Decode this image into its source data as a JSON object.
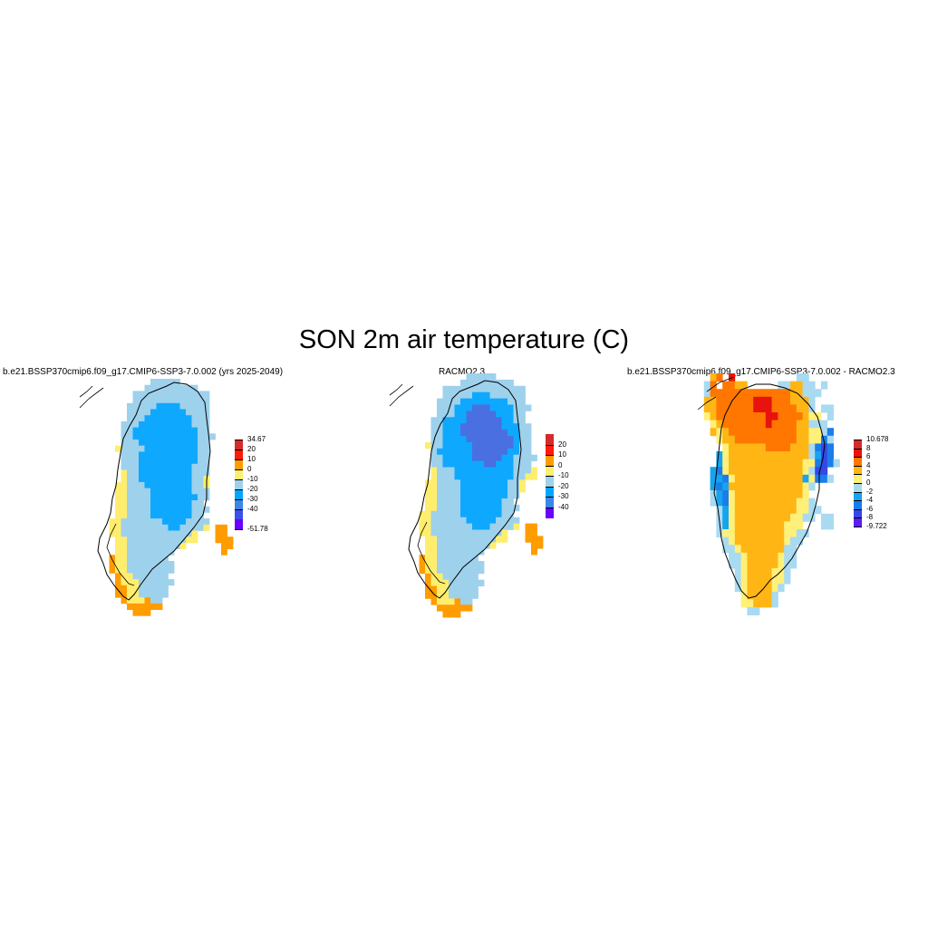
{
  "title": "SON 2m air temperature (C)",
  "panels": [
    {
      "title": "b.e21.BSSP370cmip6.f09_g17.CMIP6-SSP3-7.0.002 (yrs 2025-2049)",
      "colorbar": {
        "labels": [
          "34.67",
          "20",
          "10",
          "0",
          "-10",
          "-20",
          "-30",
          "-40",
          "-51.78"
        ],
        "colors": [
          "#d62b2b",
          "#ff1a0d",
          "#ff9c00",
          "#ffee6d",
          "#9ed1ec",
          "#00a6ff",
          "#3b86e6",
          "#3c50ea",
          "#6a00ff"
        ]
      },
      "palette": {
        "e": "#ffee6d",
        "l": "#9ed1ec",
        "c": "#0fa8ff",
        "o": "#ff9c00"
      },
      "grid": [
        "............lllll.........",
        "...........lllllllll......",
        ".........lllllllllllll....",
        ".........lllllllllllll....",
        "........lllllcccclllll....",
        "........llllccccccllll....",
        "........lllcccccccclll....",
        ".......lllccccccccclll....",
        ".......llcccccccccccll....",
        ".......llccccccccccclll...",
        ".......lllccccccccccll....",
        "......ellllcccccccccll....",
        ".......lllccccccccccll....",
        ".......lllccccccccccll....",
        ".......lllccccccccclll....",
        ".......ellccccccccclll....",
        ".......ellccccccccclle....",
        "......eelllcccccccclle....",
        "......eellllccccccclll....",
        "......eellllccccccccll....",
        "......eellllcccccccll.....",
        "......eellllccccccclll....",
        "......eellllcccccccll.....",
        ".....eelllllllccccllll....",
        ".....eellllllllcclllle.oo.",
        ".....eelllllllllllle...oo.",
        "......eellllllllllee...ooo",
        "......eellllllllle......oo",
        "......eellllllll........o.",
        ".....oeelllllll...........",
        ".....oeellllllll..........",
        ".....oeellllllll..........",
        "......oeellllll...........",
        "......oeeellllll..........",
        "......ooeelllll...........",
        "......ooeelllll...........",
        ".......oeeeoll............",
        "........oooooo............",
        ".........ooo.............."
      ]
    },
    {
      "title": "RACMO2.3",
      "colorbar": {
        "labels": [
          "20",
          "10",
          "0",
          "-10",
          "-20",
          "-30",
          "-40"
        ],
        "colors": [
          "#d62b2b",
          "#ff1a0d",
          "#ff9c00",
          "#ffee6d",
          "#9ed1ec",
          "#00a6ff",
          "#3b86e6",
          "#6a00ff"
        ]
      },
      "palette": {
        "e": "#ffee6d",
        "l": "#9ed1ec",
        "c": "#0fa8ff",
        "d": "#4a6fe0",
        "o": "#ff9c00"
      },
      "grid": [
        ".............lllll........",
        "............lllllllll.....",
        ".........llllllllllllll...",
        ".........lllllcccllllll...",
        "........llllcccccccclll...",
        "........lllcccdddcccclll..",
        "........lllccdddddcccll...",
        ".......llccccddddddccll...",
        ".......llcccdddddddcccll..",
        ".......llcccddddddddccll..",
        ".......llccccddddddddcll..",
        "......ellcccccdddddddcll..",
        ".......lccccccddddddccll..",
        ".......llcccccdddddccllll.",
        ".......llcccccccddccclll..",
        ".......elllccccccccccllle.",
        ".......elllccccccccccllee.",
        "......eellllcccccccclle...",
        "......eellllcccccccclle...",
        "......eellllccccccccll....",
        "......eellllcccccccll.....",
        "......eellllccccccclll....",
        ".....eelllllcccccccll.....",
        ".....eellllllcccccllll....",
        ".....eelllllllccclllle.oo.",
        ".....eelllllllllllle...oo.",
        "......eellllllllllee...ooo",
        "......eellllllllle......oo",
        "......eellllllll........o.",
        ".....oeelllllll...........",
        ".....oeellllllll..........",
        ".....oeellllllll..........",
        "......oeellllll...........",
        "......oeeellllll..........",
        "......ooeelllll...........",
        "......ooeelllll...........",
        ".......oeeeoll............",
        "........oooooo............",
        ".........ooo.............."
      ]
    },
    {
      "title": "b.e21.BSSP370cmip6.f09_g17.CMIP6-SSP3-7.0.002 - RACMO2.3",
      "colorbar": {
        "labels": [
          "10.678",
          "8",
          "6",
          "4",
          "2",
          "0",
          "-2",
          "-4",
          "-6",
          "-8",
          "-9.722"
        ],
        "colors": [
          "#d62b2b",
          "#e8130d",
          "#ff7700",
          "#ffb615",
          "#fff07a",
          "#a8daf2",
          "#16a4f0",
          "#1a7dea",
          "#3548e6",
          "#5a1ff0"
        ]
      },
      "palette": {
        "e": "#fff07a",
        "l": "#a8daf2",
        "a": "#ffb615",
        "o": "#ff7700",
        "r": "#e8130d",
        "c": "#16a4f0",
        "b": "#1a7dea",
        "d": "#3548e6"
      },
      "grid": [
        "..ao.r..........ll.....",
        ".lo.ooaa.....llaall.l..",
        ".loooooooooooooaalll...",
        ".aaoooooorrroooaaal....",
        ".aaoooooorrrooooaal.ll.",
        ".eaoooooooorrooooaee.l.",
        "..eaooooooorooooaalll..",
        "..aeaoooooooooooaaeelb.",
        "...eaaooooooooooaaeebl.",
        "....eaaaaaaooooaaalbdb.",
        "...ceaaaaaaaaaaaaalcdb.",
        "...ceaaaaaaaaaaaaeebdbl",
        "..cbeaaaaaaaaaaaaeldd..",
        "..ccbeaaaaaaaaaaacebbl.",
        "..cbcaaaaaaaaaaaael....",
        "..lcbeaaaaaaaaaaae.....",
        "..lcbeaaaaaaaaaaeel....",
        "...lceaaaaaaaaaaeell...",
        "...lceaaaaaaaaaeell.ll.",
        "...lceaaaaaaaaeee...ll.",
        "...leeaaaaaaaaeell.....",
        "....leaaaaaaaaell......",
        "....lleaaaaaaall.......",
        ".....lleaaaaaell.......",
        ".....lleaaaaaell.......",
        "......leaaaaeel........",
        "......leaaaaeel........",
        "......leaaaael.........",
        ".......eaaaal..........",
        ".......eeaaal..........",
        "........ll.............."
      ]
    }
  ]
}
